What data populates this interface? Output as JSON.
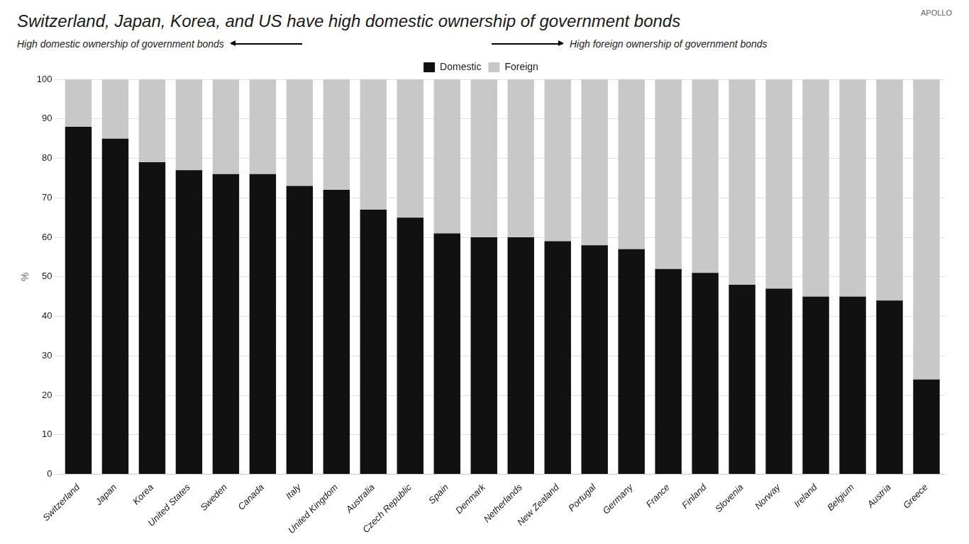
{
  "chart_data": {
    "type": "bar",
    "title": "Switzerland, Japan, Korea, and US have high domestic ownership of government bonds",
    "categories": [
      "Switzerland",
      "Japan",
      "Korea",
      "United States",
      "Sweden",
      "Canada",
      "Italy",
      "United Kingdom",
      "Australia",
      "Czech Republic",
      "Spain",
      "Denmark",
      "Netherlands",
      "New Zealand",
      "Portugal",
      "Germany",
      "France",
      "Finland",
      "Slovenia",
      "Norway",
      "Ireland",
      "Belgium",
      "Austria",
      "Greece"
    ],
    "series": [
      {
        "name": "Domestic",
        "color": "#111111",
        "values": [
          88,
          85,
          79,
          77,
          76,
          76,
          73,
          72,
          67,
          65,
          61,
          60,
          60,
          59,
          58,
          57,
          52,
          51,
          48,
          47,
          45,
          45,
          44,
          24
        ]
      },
      {
        "name": "Foreign",
        "color": "#c8c8c8",
        "values": [
          12,
          15,
          21,
          23,
          24,
          24,
          27,
          28,
          33,
          35,
          39,
          40,
          40,
          41,
          42,
          43,
          48,
          49,
          52,
          53,
          55,
          55,
          56,
          76
        ]
      }
    ],
    "stacked": true,
    "ylabel": "%",
    "ylim": [
      0,
      100
    ],
    "yticks": [
      0,
      10,
      20,
      30,
      40,
      50,
      60,
      70,
      80,
      90,
      100
    ],
    "grid": true,
    "legend": "top",
    "annotations": [
      "High domestic ownership of government bonds",
      "High foreign ownership of government bonds",
      "APOLLO"
    ]
  }
}
